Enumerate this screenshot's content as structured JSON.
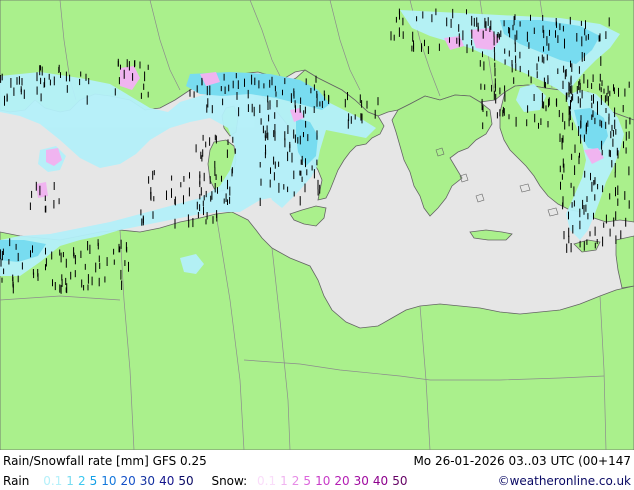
{
  "title": "Rain/Snowfall rate [mm] GFS 0.25",
  "datetime": "Mo 26-01-2026 03..03 UTC (00+147",
  "rain_label": "Rain",
  "snow_label": "Snow:",
  "copyright": "©weatheronline.co.uk",
  "rain_scale": [
    {
      "label": "0.1",
      "color": "#b4f0fa"
    },
    {
      "label": "1",
      "color": "#78dcf0"
    },
    {
      "label": "2",
      "color": "#3cc8f0"
    },
    {
      "label": "5",
      "color": "#14a0e6"
    },
    {
      "label": "10",
      "color": "#1478dc"
    },
    {
      "label": "20",
      "color": "#1450c8"
    },
    {
      "label": "30",
      "color": "#1432a0"
    },
    {
      "label": "40",
      "color": "#14148c"
    },
    {
      "label": "50",
      "color": "#0a0a64"
    }
  ],
  "snow_scale": [
    {
      "label": "0.1",
      "color": "#fadcfa"
    },
    {
      "label": "1",
      "color": "#f0b4f0"
    },
    {
      "label": "2",
      "color": "#e68ce6"
    },
    {
      "label": "5",
      "color": "#dc64dc"
    },
    {
      "label": "10",
      "color": "#c83cc8"
    },
    {
      "label": "20",
      "color": "#b41eb4"
    },
    {
      "label": "30",
      "color": "#a00aa0"
    },
    {
      "label": "40",
      "color": "#8c008c"
    },
    {
      "label": "50",
      "color": "#640064"
    }
  ],
  "colors": {
    "land": "#aaf08c",
    "sea": "#e6e6e6",
    "border": "#8c8c8c",
    "coast": "#646464",
    "rain": "#b4f0fa",
    "rain_mid": "#78dcf0",
    "snow": "#f0b4f0"
  }
}
